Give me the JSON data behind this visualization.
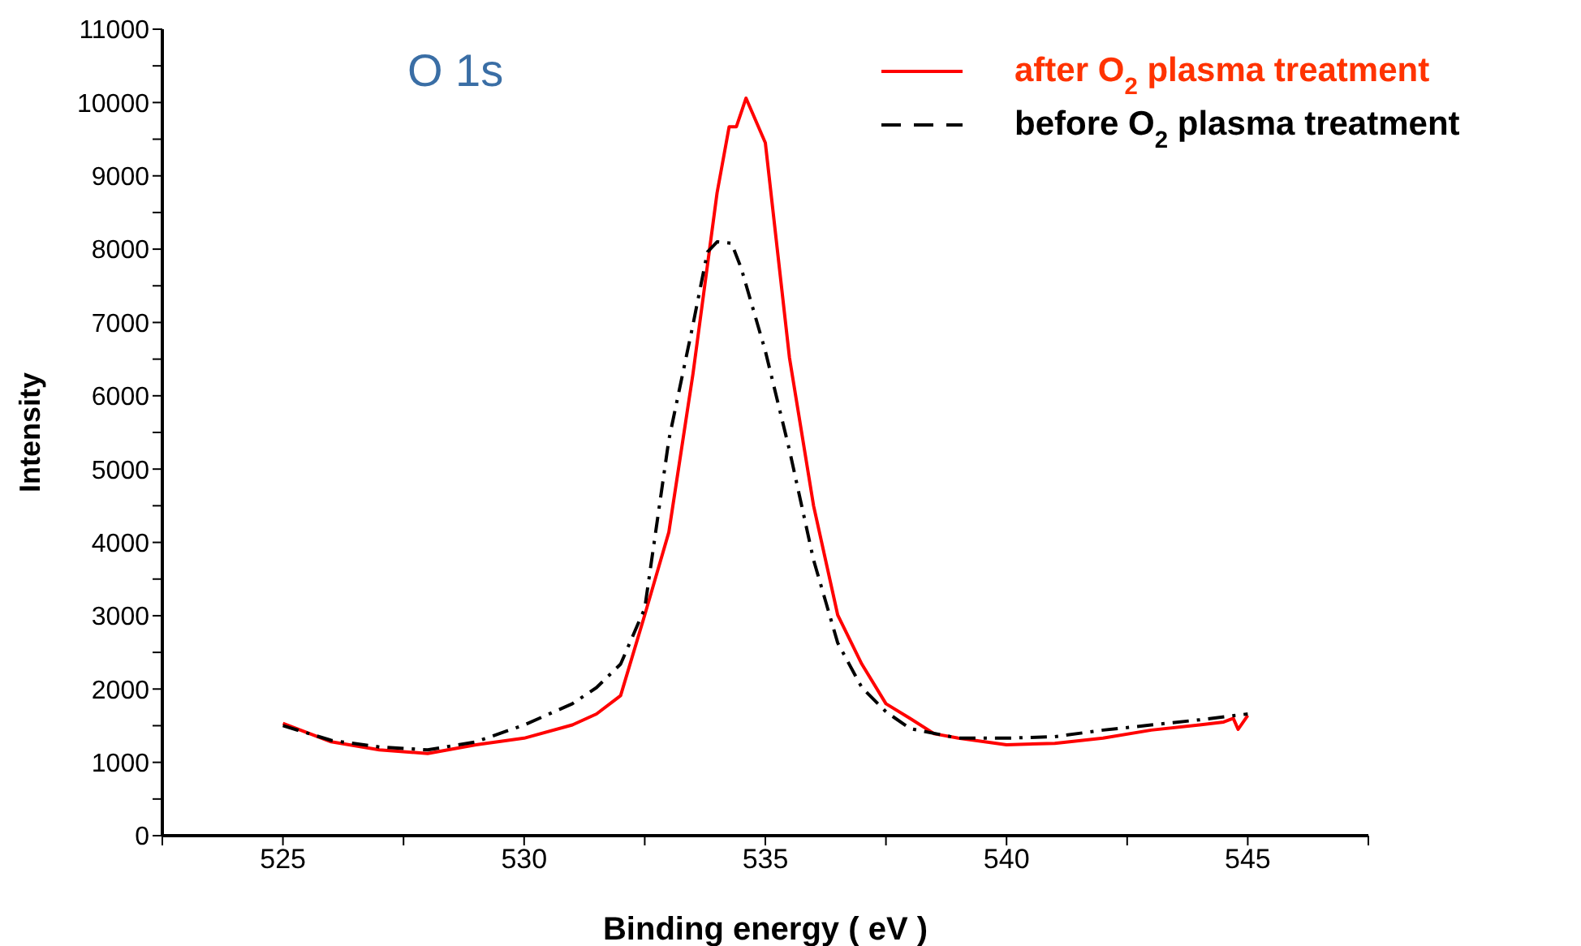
{
  "chart_data": {
    "type": "line",
    "xlabel": "Binding energy ( eV )",
    "ylabel": "Intensity",
    "annotations": [
      {
        "text": "O 1s"
      }
    ],
    "xlim": [
      522.5,
      547.5
    ],
    "xticks": [
      {
        "value": 522.5,
        "label": null
      },
      525,
      {
        "value": 527.5,
        "label": null
      },
      530,
      {
        "value": 532.5,
        "label": null
      },
      535,
      {
        "value": 537.5,
        "label": null
      },
      540,
      {
        "value": 542.5,
        "label": null
      },
      545,
      {
        "value": 547.5,
        "label": null
      }
    ],
    "ylim": [
      0,
      11000
    ],
    "yticks": [
      0,
      {
        "value": 500,
        "label": null
      },
      1000,
      {
        "value": 1500,
        "label": null
      },
      2000,
      {
        "value": 2500,
        "label": null
      },
      3000,
      {
        "value": 3500,
        "label": null
      },
      4000,
      {
        "value": 4500,
        "label": null
      },
      5000,
      {
        "value": 5500,
        "label": null
      },
      6000,
      {
        "value": 6500,
        "label": null
      },
      7000,
      {
        "value": 7500,
        "label": null
      },
      8000,
      {
        "value": 8500,
        "label": null
      },
      9000,
      {
        "value": 9500,
        "label": null
      },
      10000,
      {
        "value": 10500,
        "label": null
      },
      11000
    ],
    "grid": false,
    "legend": "top right",
    "marker": "none",
    "series": [
      {
        "name": "after O$_{2}$ plasma treatment",
        "color": "#ff0000",
        "line_style": "solid",
        "x": [
          525,
          526,
          527,
          528,
          529,
          530,
          531,
          531.5,
          532,
          532.5,
          533,
          533.5,
          534,
          534.25,
          534.4,
          534.6,
          535,
          535.5,
          536,
          536.5,
          537,
          537.5,
          538,
          538.5,
          539,
          540,
          541,
          542,
          543,
          544,
          544.5,
          544.7,
          544.8,
          545
        ],
        "values": [
          1530,
          1280,
          1170,
          1120,
          1240,
          1330,
          1510,
          1660,
          1910,
          3010,
          4140,
          6300,
          8770,
          9670,
          9670,
          10060,
          9450,
          6520,
          4500,
          3010,
          2340,
          1800,
          1600,
          1390,
          1330,
          1240,
          1260,
          1330,
          1440,
          1510,
          1550,
          1600,
          1450,
          1640
        ]
      },
      {
        "name": "before O$_{2}$ plasma treatment",
        "color": "#000000",
        "line_style": "dashed",
        "x": [
          525,
          526,
          527,
          528,
          529,
          530,
          531,
          531.5,
          532,
          532.5,
          533,
          533.5,
          533.8,
          534,
          534.3,
          534.5,
          535,
          535.5,
          536,
          536.5,
          537,
          537.5,
          538,
          539,
          540,
          541,
          542,
          543,
          544,
          545
        ],
        "values": [
          1500,
          1300,
          1210,
          1170,
          1280,
          1510,
          1800,
          2020,
          2340,
          3100,
          5400,
          6970,
          7960,
          8100,
          8080,
          7740,
          6610,
          5260,
          3760,
          2630,
          2020,
          1690,
          1460,
          1330,
          1330,
          1350,
          1440,
          1510,
          1580,
          1660
        ]
      }
    ]
  }
}
